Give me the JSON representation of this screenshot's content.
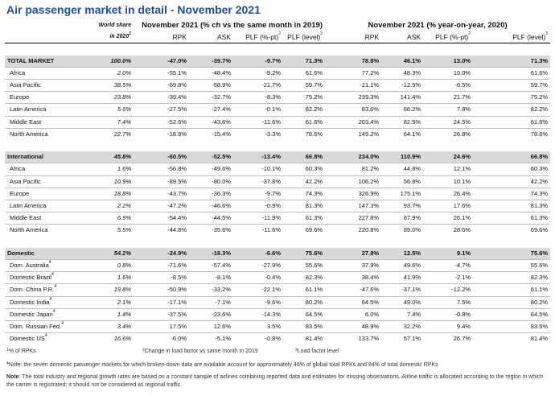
{
  "title": "Air passenger market in detail - November 2021",
  "header": {
    "world_share_1": "World share",
    "world_share_2": "in 2020",
    "world_share_sup": "1",
    "group_left": "November 2021 (% ch vs the same month in 2019)",
    "group_right": "November 2021 (% year-on-year, 2020)",
    "cols": [
      "RPK",
      "ASK",
      "PLF (%-pt)",
      "PLF (level)"
    ],
    "plf_pt_sup": "2",
    "plf_level_sup": "3"
  },
  "sections": [
    {
      "name": "total",
      "total": {
        "label": "TOTAL MARKET",
        "sup": "",
        "ws": "100.0%",
        "a": [
          "-47.0%",
          "-39.7%",
          "-9.7%",
          "71.3%"
        ],
        "b": [
          "78.8%",
          "46.1%",
          "13.0%",
          "71.3%"
        ]
      },
      "rows": [
        {
          "label": "Africa",
          "sup": "",
          "ws": "2.0%",
          "a": [
            "-55.1%",
            "-48.4%",
            "-9.2%",
            "61.6%"
          ],
          "b": [
            "77.2%",
            "48.3%",
            "10.0%",
            "61.6%"
          ]
        },
        {
          "label": "Asia Pacific",
          "sup": "",
          "ws": "38.5%",
          "a": [
            "-69.8%",
            "-58.9%",
            "-21.7%",
            "59.7%"
          ],
          "b": [
            "-21.1%",
            "-12.5%",
            "-6.5%",
            "59.7%"
          ]
        },
        {
          "label": "Europe",
          "sup": "",
          "ws": "23.8%",
          "a": [
            "-39.4%",
            "-32.7%",
            "-8.3%",
            "75.2%"
          ],
          "b": [
            "239.3%",
            "141.4%",
            "21.7%",
            "75.2%"
          ]
        },
        {
          "label": "Latin America",
          "sup": "",
          "ws": "5.6%",
          "a": [
            "-27.5%",
            "-27.4%",
            "-0.1%",
            "82.2%"
          ],
          "b": [
            "83.6%",
            "66.2%",
            "7.8%",
            "82.2%"
          ]
        },
        {
          "label": "Middle East",
          "sup": "",
          "ws": "7.4%",
          "a": [
            "-52.6%",
            "-43.6%",
            "-11.6%",
            "61.6%"
          ],
          "b": [
            "203.4%",
            "82.5%",
            "24.5%",
            "61.6%"
          ]
        },
        {
          "label": "North America",
          "sup": "",
          "ws": "22.7%",
          "a": [
            "-18.8%",
            "-15.4%",
            "-3.3%",
            "78.6%"
          ],
          "b": [
            "149.2%",
            "64.1%",
            "26.8%",
            "78.6%"
          ]
        }
      ]
    },
    {
      "name": "international",
      "total": {
        "label": "International",
        "sup": "",
        "ws": "45.8%",
        "a": [
          "-60.5%",
          "-52.5%",
          "-13.4%",
          "66.8%"
        ],
        "b": [
          "234.0%",
          "110.9%",
          "24.6%",
          "66.8%"
        ]
      },
      "rows": [
        {
          "label": "Africa",
          "sup": "",
          "ws": "1.6%",
          "a": [
            "-56.8%",
            "-49.6%",
            "-10.1%",
            "60.3%"
          ],
          "b": [
            "81.2%",
            "44.8%",
            "12.1%",
            "60.3%"
          ]
        },
        {
          "label": "Asia Pacific",
          "sup": "",
          "ws": "10.9%",
          "a": [
            "-89.5%",
            "-80.0%",
            "-37.8%",
            "42.2%"
          ],
          "b": [
            "106.2%",
            "56.8%",
            "10.1%",
            "42.2%"
          ]
        },
        {
          "label": "Europe",
          "sup": "",
          "ws": "18.8%",
          "a": [
            "-43.7%",
            "-36.3%",
            "-9.7%",
            "74.3%"
          ],
          "b": [
            "326.9%",
            "175.1%",
            "26.4%",
            "74.3%"
          ]
        },
        {
          "label": "Latin America",
          "sup": "",
          "ws": "2.2%",
          "a": [
            "-47.2%",
            "-46.6%",
            "-0.9%",
            "81.3%"
          ],
          "b": [
            "147.3%",
            "93.7%",
            "17.6%",
            "81.3%"
          ]
        },
        {
          "label": "Middle East",
          "sup": "",
          "ws": "6.9%",
          "a": [
            "-54.4%",
            "-44.5%",
            "-11.9%",
            "61.3%"
          ],
          "b": [
            "227.8%",
            "87.9%",
            "26.1%",
            "61.3%"
          ]
        },
        {
          "label": "North America",
          "sup": "",
          "ws": "5.5%",
          "a": [
            "-44.8%",
            "-35.6%",
            "-11.6%",
            "69.6%"
          ],
          "b": [
            "220.8%",
            "89.0%",
            "28.6%",
            "69.6%"
          ]
        }
      ]
    },
    {
      "name": "domestic",
      "total": {
        "label": "Domestic",
        "sup": "",
        "ws": "54.2%",
        "a": [
          "-24.9%",
          "-18.3%",
          "-6.6%",
          "75.6%"
        ],
        "b": [
          "27.8%",
          "12.5%",
          "9.1%",
          "75.6%"
        ]
      },
      "rows": [
        {
          "label": "Dom. Australia",
          "sup": "4",
          "ws": "0.8%",
          "a": [
            "-71.6%",
            "-57.4%",
            "-27.9%",
            "55.6%"
          ],
          "b": [
            "37.9%",
            "49.6%",
            "-4.7%",
            "55.6%"
          ]
        },
        {
          "label": "Domestic Brazil",
          "sup": "4",
          "ws": "1.6%",
          "a": [
            "-8.5%",
            "-8.1%",
            "-0.4%",
            "82.3%"
          ],
          "b": [
            "38.4%",
            "41.9%",
            "-2.1%",
            "82.3%"
          ]
        },
        {
          "label": "Dom. China P.R.",
          "sup": "4",
          "ws": "19.8%",
          "a": [
            "-50.9%",
            "-33.2%",
            "-22.1%",
            "61.1%"
          ],
          "b": [
            "-47.6%",
            "-37.1%",
            "-12.2%",
            "61.1%"
          ]
        },
        {
          "label": "Domestic India",
          "sup": "4",
          "ws": "2.1%",
          "a": [
            "-17.1%",
            "-7.1%",
            "-9.6%",
            "80.2%"
          ],
          "b": [
            "64.5%",
            "49.0%",
            "7.5%",
            "80.2%"
          ]
        },
        {
          "label": "Domestic Japan",
          "sup": "4",
          "ws": "1.4%",
          "a": [
            "-37.5%",
            "-23.6%",
            "-14.3%",
            "64.5%"
          ],
          "b": [
            "6.0%",
            "7.4%",
            "-0.8%",
            "64.5%"
          ]
        },
        {
          "label": "Dom. Russian Fed.",
          "sup": "4",
          "ws": "3.4%",
          "a": [
            "17.5%",
            "12.6%",
            "3.5%",
            "83.5%"
          ],
          "b": [
            "48.9%",
            "32.2%",
            "9.4%",
            "83.5%"
          ]
        },
        {
          "label": "Domestic US",
          "sup": "4",
          "ws": "16.6%",
          "a": [
            "-6.0%",
            "-5.1%",
            "-0.8%",
            "81.4%"
          ],
          "b": [
            "133.7%",
            "57.1%",
            "26.7%",
            "81.4%"
          ]
        }
      ]
    }
  ],
  "footnotes": {
    "f1_sup": "1",
    "f1": "% of RPKs",
    "f2_sup": "2",
    "f2": "Change in load factor vs same month in 2019",
    "f3_sup": "3",
    "f3": "Load factor level",
    "f4_sup": "4",
    "f4": "Note: the seven domestic passenger markets for which broken-down data are available account for approximately 46% of global total RPKs and 84% of total domestic RPKs",
    "note_label": "Note",
    "note": ": The total industry and regional growth rates are based on a constant sample of airlines combining reported data and estimates for missing observations. Airline traffic is allocated according to the region in which the carrier is registrated; it should not be considered as regional traffic."
  }
}
